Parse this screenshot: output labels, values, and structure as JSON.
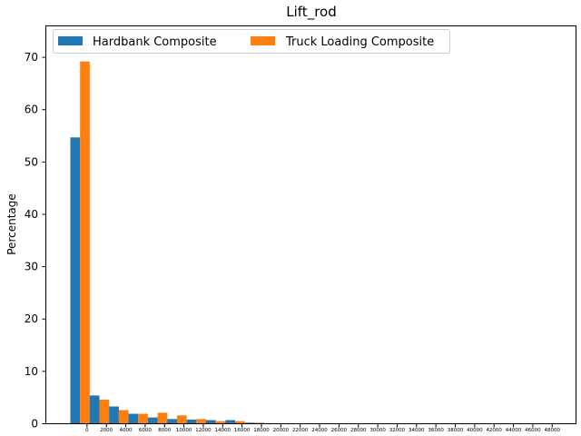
{
  "chart_data": {
    "type": "bar",
    "title": "Lift_rod",
    "xlabel": "",
    "ylabel": "Percentage",
    "ylim": [
      0,
      76
    ],
    "yticks": [
      0,
      10,
      20,
      30,
      40,
      50,
      60,
      70
    ],
    "grid": false,
    "legend_position": "top-left",
    "categories": [
      "0",
      "2000",
      "4000",
      "6000",
      "8000",
      "10000",
      "12000",
      "14000",
      "16000",
      "18000",
      "20000",
      "22000",
      "24000",
      "26000",
      "28000",
      "30000",
      "32000",
      "34000",
      "36000",
      "38000",
      "40000",
      "42000",
      "44000",
      "46000",
      "48000"
    ],
    "series": [
      {
        "name": "Hardbank Composite",
        "color": "#1f77b4",
        "values": [
          54.7,
          5.4,
          3.3,
          1.9,
          1.2,
          0.9,
          0.8,
          0.7,
          0.7,
          0.2,
          0.1,
          0,
          0,
          0,
          0,
          0,
          0,
          0,
          0,
          0,
          0,
          0,
          0,
          0,
          0
        ]
      },
      {
        "name": "Truck Loading Composite",
        "color": "#ff7f0e",
        "values": [
          69.2,
          4.6,
          2.6,
          1.9,
          2.1,
          1.6,
          0.9,
          0.5,
          0.5,
          0.2,
          0.1,
          0,
          0,
          0,
          0,
          0,
          0,
          0,
          0,
          0,
          0,
          0,
          0,
          0,
          0
        ]
      }
    ]
  }
}
